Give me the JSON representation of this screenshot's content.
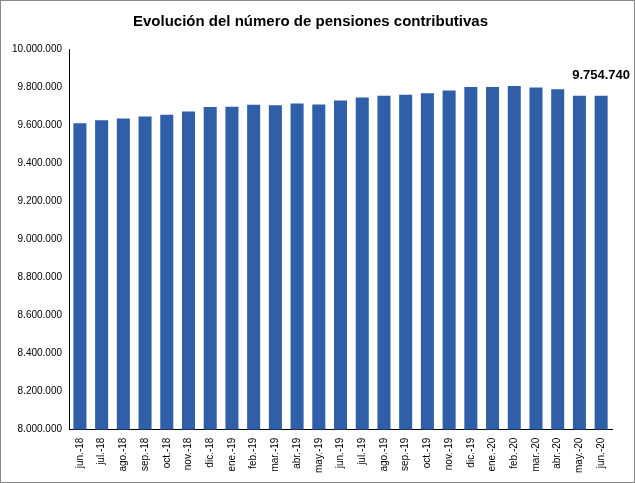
{
  "chart_data": {
    "type": "bar",
    "title": "Evolución del número de pensiones contributivas",
    "categories": [
      "jun.-18",
      "jul.-18",
      "ago.-18",
      "sep.-18",
      "oct.-18",
      "nov.-18",
      "dic.-18",
      "ene.-19",
      "feb.-19",
      "mar.-19",
      "abr.-19",
      "may.-19",
      "jun.-19",
      "jul.-19",
      "ago.-19",
      "sep.-19",
      "oct.-19",
      "nov.-19",
      "dic.-19",
      "ene.-20",
      "feb.-20",
      "mar.-20",
      "abr.-20",
      "may.-20",
      "jun.-20"
    ],
    "values": [
      9610000,
      9625000,
      9635000,
      9645000,
      9655000,
      9672000,
      9695000,
      9697000,
      9707000,
      9705000,
      9713000,
      9708000,
      9730000,
      9745000,
      9755000,
      9760000,
      9768000,
      9782000,
      9800000,
      9800000,
      9805000,
      9798000,
      9789000,
      9755000,
      9754740
    ],
    "color": "#2e5fa8",
    "ylim": [
      8000000,
      10000000
    ],
    "yticks": [
      {
        "value": 8000000,
        "label": "8.000.000"
      },
      {
        "value": 8200000,
        "label": "8.200.000"
      },
      {
        "value": 8400000,
        "label": "8.400.000"
      },
      {
        "value": 8600000,
        "label": "8.600.000"
      },
      {
        "value": 8800000,
        "label": "8.800.000"
      },
      {
        "value": 9000000,
        "label": "9.000.000"
      },
      {
        "value": 9200000,
        "label": "9.200.000"
      },
      {
        "value": 9400000,
        "label": "9.400.000"
      },
      {
        "value": 9600000,
        "label": "9.600.000"
      },
      {
        "value": 9800000,
        "label": "9.800.000"
      },
      {
        "value": 10000000,
        "label": "10.000.000"
      }
    ],
    "grid": false,
    "annotations": [
      {
        "category": "jun.-20",
        "text": "9.754.740"
      }
    ]
  }
}
